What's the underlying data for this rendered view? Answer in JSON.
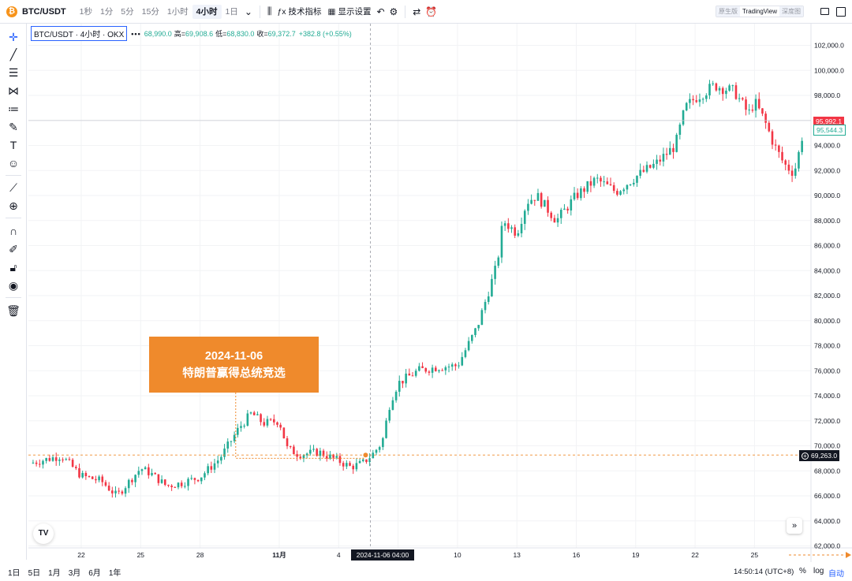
{
  "topbar": {
    "symbol": "BTC/USDT",
    "coin_icon": "₿",
    "timeframes": [
      "1秒",
      "1分",
      "5分",
      "15分",
      "1小时",
      "4小时",
      "1日"
    ],
    "active_timeframe": "4小时",
    "indicators_label": "技术指标",
    "display_settings_label": "显示设置",
    "views": [
      "原生版",
      "TradingView",
      "深度图"
    ],
    "active_view": "TradingView"
  },
  "legend": {
    "title": "BTC/USDT · 4小时 · OKX",
    "dots": "•••",
    "open_value": "68,990.0",
    "high_label": "高=",
    "high_value": "69,908.6",
    "low_label": "低=",
    "low_value": "68,830.0",
    "close_label": "收=",
    "close_value": "69,372.7",
    "change": "+382.8 (+0.55%)"
  },
  "annotation": {
    "date": "2024-11-06",
    "text": "特朗普赢得总统竞选"
  },
  "bottom": {
    "ranges": [
      "1日",
      "5日",
      "1月",
      "3月",
      "6月",
      "1年"
    ],
    "clock": "14:50:14 (UTC+8)",
    "percent": "%",
    "log": "log",
    "auto": "自动"
  },
  "logo_text": "TV",
  "colors": {
    "up": "#22ab94",
    "down": "#f23645",
    "accent": "#ef8a2c",
    "brand": "#2962ff"
  },
  "chart_data": {
    "type": "candlestick",
    "title": "BTC/USDT · 4小时 · OKX",
    "y_ticks": [
      62000,
      64000,
      66000,
      68000,
      70000,
      72000,
      74000,
      76000,
      78000,
      80000,
      82000,
      84000,
      86000,
      88000,
      90000,
      92000,
      94000,
      96000,
      98000,
      100000,
      102000
    ],
    "ylim": [
      61700,
      104000
    ],
    "x_ticks": [
      {
        "label": "22",
        "day": 0
      },
      {
        "label": "25",
        "day": 3
      },
      {
        "label": "28",
        "day": 6
      },
      {
        "label": "11月",
        "day": 10
      },
      {
        "label": "4",
        "day": 13
      },
      {
        "label": "7",
        "day": 16
      },
      {
        "label": "10",
        "day": 19
      },
      {
        "label": "13",
        "day": 22
      },
      {
        "label": "16",
        "day": 25
      },
      {
        "label": "19",
        "day": 28
      },
      {
        "label": "22",
        "day": 31
      },
      {
        "label": "25",
        "day": 34
      }
    ],
    "day_anchors": [
      [
        -2.6,
        68600
      ],
      [
        -1,
        69200
      ],
      [
        0,
        67600
      ],
      [
        1,
        67200
      ],
      [
        1.8,
        66000
      ],
      [
        2.5,
        67300
      ],
      [
        3,
        68200
      ],
      [
        3.5,
        67800
      ],
      [
        4.3,
        66800
      ],
      [
        5,
        67000
      ],
      [
        6,
        67500
      ],
      [
        7,
        69000
      ],
      [
        8,
        71500
      ],
      [
        8.6,
        72600
      ],
      [
        9.2,
        71800
      ],
      [
        10,
        72000
      ],
      [
        10.4,
        69800
      ],
      [
        11,
        69300
      ],
      [
        12,
        69500
      ],
      [
        13,
        68800
      ],
      [
        13.6,
        68300
      ],
      [
        14.2,
        68600
      ],
      [
        14.7,
        69300
      ],
      [
        15.2,
        70300
      ],
      [
        15.6,
        73500
      ],
      [
        16,
        75000
      ],
      [
        17,
        76000
      ],
      [
        18,
        76300
      ],
      [
        19,
        76400
      ],
      [
        20,
        79500
      ],
      [
        21,
        84500
      ],
      [
        21.3,
        88000
      ],
      [
        22,
        87000
      ],
      [
        22.5,
        89500
      ],
      [
        23,
        90000
      ],
      [
        24,
        88000
      ],
      [
        25,
        90000
      ],
      [
        26,
        91300
      ],
      [
        27,
        90300
      ],
      [
        28,
        91500
      ],
      [
        29,
        92500
      ],
      [
        30,
        94000
      ],
      [
        30.5,
        97000
      ],
      [
        31,
        97800
      ],
      [
        32,
        98800
      ],
      [
        33,
        98300
      ],
      [
        33.7,
        96500
      ],
      [
        34,
        97500
      ],
      [
        34.5,
        96000
      ],
      [
        35,
        94000
      ],
      [
        35.5,
        92500
      ],
      [
        36,
        91800
      ],
      [
        36.3,
        93800
      ],
      [
        36.5,
        95544
      ]
    ],
    "candles_per_day": 6,
    "last_price": "95,544.3",
    "crosshair_price_label": "95,992.1",
    "crosshair_time_label": "2024-11-06  04:00",
    "marker_price_label": "69,263.0",
    "crosshair_price": 95992.1,
    "marker_price": 69263.0,
    "crosshair_day": 14.6,
    "grid": true
  }
}
